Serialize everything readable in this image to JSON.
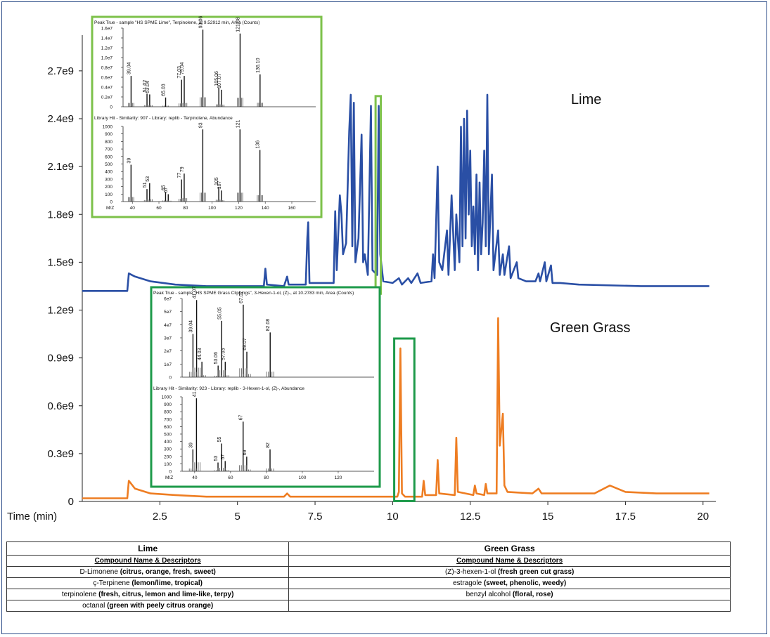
{
  "chart_data": {
    "type": "line",
    "xlabel": "Time (min)",
    "xticks": [
      "2.5",
      "5",
      "7.5",
      "10",
      "12.5",
      "15",
      "17.5",
      "20"
    ],
    "xlim": [
      0,
      20.3
    ],
    "yticks": [
      "0",
      "0.3e9",
      "0.6e9",
      "0.9e9",
      "1.2e9",
      "1.5e9",
      "1.8e9",
      "2.1e9",
      "2.4e9",
      "2.7e9"
    ],
    "ylim": [
      0,
      2880000000.0
    ],
    "series": [
      {
        "name": "Lime",
        "color": "#2a4fa5",
        "baseline": 1320000000.0,
        "points": [
          [
            0,
            1320000000.0
          ],
          [
            1.45,
            1320000000.0
          ],
          [
            1.5,
            1430000000.0
          ],
          [
            1.7,
            1410000000.0
          ],
          [
            2.2,
            1380000000.0
          ],
          [
            3,
            1360000000.0
          ],
          [
            4,
            1350000000.0
          ],
          [
            5.5,
            1350000000.0
          ],
          [
            5.85,
            1350000000.0
          ],
          [
            5.9,
            1460000000.0
          ],
          [
            5.95,
            1360000000.0
          ],
          [
            6.5,
            1350000000.0
          ],
          [
            6.6,
            1410000000.0
          ],
          [
            6.65,
            1360000000.0
          ],
          [
            7.2,
            1360000000.0
          ],
          [
            7.25,
            1650000000.0
          ],
          [
            7.28,
            1750000000.0
          ],
          [
            7.32,
            1370000000.0
          ],
          [
            8.1,
            1370000000.0
          ],
          [
            8.15,
            1820000000.0
          ],
          [
            8.2,
            1450000000.0
          ],
          [
            8.3,
            1920000000.0
          ],
          [
            8.35,
            1800000000.0
          ],
          [
            8.4,
            1550000000.0
          ],
          [
            8.5,
            1620000000.0
          ],
          [
            8.6,
            2320000000.0
          ],
          [
            8.65,
            2550000000.0
          ],
          [
            8.7,
            1600000000.0
          ],
          [
            8.75,
            2500000000.0
          ],
          [
            8.8,
            1500000000.0
          ],
          [
            8.9,
            1650000000.0
          ],
          [
            9.0,
            2300000000.0
          ],
          [
            9.05,
            1500000000.0
          ],
          [
            9.1,
            1550000000.0
          ],
          [
            9.2,
            1420000000.0
          ],
          [
            9.3,
            2480000000.0
          ],
          [
            9.35,
            1450000000.0
          ],
          [
            9.5,
            1420000000.0
          ],
          [
            9.55,
            2480000000.0
          ],
          [
            9.6,
            1550000000.0
          ],
          [
            9.7,
            1380000000.0
          ],
          [
            10.0,
            1370000000.0
          ],
          [
            10.2,
            1400000000.0
          ],
          [
            10.3,
            1360000000.0
          ],
          [
            10.5,
            1400000000.0
          ],
          [
            10.6,
            1370000000.0
          ],
          [
            10.8,
            1430000000.0
          ],
          [
            10.9,
            1370000000.0
          ],
          [
            11.25,
            1380000000.0
          ],
          [
            11.3,
            1550000000.0
          ],
          [
            11.35,
            1400000000.0
          ],
          [
            11.45,
            2100000000.0
          ],
          [
            11.5,
            1500000000.0
          ],
          [
            11.6,
            1450000000.0
          ],
          [
            11.75,
            1700000000.0
          ],
          [
            11.8,
            1420000000.0
          ],
          [
            11.9,
            1920000000.0
          ],
          [
            12.0,
            1450000000.0
          ],
          [
            12.05,
            1800000000.0
          ],
          [
            12.15,
            1500000000.0
          ],
          [
            12.2,
            2350000000.0
          ],
          [
            12.25,
            1600000000.0
          ],
          [
            12.3,
            2400000000.0
          ],
          [
            12.35,
            1650000000.0
          ],
          [
            12.4,
            2450000000.0
          ],
          [
            12.45,
            1800000000.0
          ],
          [
            12.5,
            2200000000.0
          ],
          [
            12.55,
            1600000000.0
          ],
          [
            12.6,
            1850000000.0
          ],
          [
            12.65,
            1550000000.0
          ],
          [
            12.7,
            2050000000.0
          ],
          [
            12.75,
            1450000000.0
          ],
          [
            12.8,
            2000000000.0
          ],
          [
            12.85,
            1550000000.0
          ],
          [
            12.9,
            1750000000.0
          ],
          [
            12.95,
            2200000000.0
          ],
          [
            13.0,
            1600000000.0
          ],
          [
            13.05,
            2550000000.0
          ],
          [
            13.1,
            1550000000.0
          ],
          [
            13.2,
            2050000000.0
          ],
          [
            13.25,
            1450000000.0
          ],
          [
            13.4,
            1700000000.0
          ],
          [
            13.45,
            1420000000.0
          ],
          [
            13.55,
            1550000000.0
          ],
          [
            13.6,
            1420000000.0
          ],
          [
            13.75,
            1600000000.0
          ],
          [
            13.8,
            1400000000.0
          ],
          [
            14.0,
            1500000000.0
          ],
          [
            14.05,
            1400000000.0
          ],
          [
            14.3,
            1380000000.0
          ],
          [
            14.6,
            1380000000.0
          ],
          [
            14.7,
            1430000000.0
          ],
          [
            14.75,
            1380000000.0
          ],
          [
            14.9,
            1500000000.0
          ],
          [
            14.95,
            1380000000.0
          ],
          [
            15.1,
            1480000000.0
          ],
          [
            15.15,
            1370000000.0
          ],
          [
            15.4,
            1370000000.0
          ],
          [
            16,
            1360000000.0
          ],
          [
            18,
            1350000000.0
          ],
          [
            20.2,
            1350000000.0
          ]
        ]
      },
      {
        "name": "Green Grass",
        "color": "#ee7d22",
        "baseline": 20000000.0,
        "points": [
          [
            0,
            20000000.0
          ],
          [
            1.45,
            20000000.0
          ],
          [
            1.5,
            130000000.0
          ],
          [
            1.7,
            80000000.0
          ],
          [
            2.2,
            50000000.0
          ],
          [
            3,
            40000000.0
          ],
          [
            4,
            30000000.0
          ],
          [
            6.5,
            30000000.0
          ],
          [
            6.6,
            50000000.0
          ],
          [
            6.7,
            30000000.0
          ],
          [
            8,
            30000000.0
          ],
          [
            10,
            30000000.0
          ],
          [
            10.15,
            30000000.0
          ],
          [
            10.2,
            60000000.0
          ],
          [
            10.25,
            960000000.0
          ],
          [
            10.3,
            50000000.0
          ],
          [
            10.4,
            30000000.0
          ],
          [
            10.95,
            30000000.0
          ],
          [
            11.0,
            130000000.0
          ],
          [
            11.05,
            40000000.0
          ],
          [
            11.4,
            40000000.0
          ],
          [
            11.45,
            260000000.0
          ],
          [
            11.5,
            50000000.0
          ],
          [
            12.0,
            40000000.0
          ],
          [
            12.05,
            400000000.0
          ],
          [
            12.1,
            60000000.0
          ],
          [
            12.6,
            40000000.0
          ],
          [
            12.65,
            100000000.0
          ],
          [
            12.7,
            50000000.0
          ],
          [
            12.95,
            40000000.0
          ],
          [
            13.0,
            110000000.0
          ],
          [
            13.05,
            50000000.0
          ],
          [
            13.35,
            50000000.0
          ],
          [
            13.4,
            1150000000.0
          ],
          [
            13.45,
            350000000.0
          ],
          [
            13.55,
            550000000.0
          ],
          [
            13.6,
            100000000.0
          ],
          [
            13.7,
            60000000.0
          ],
          [
            14.5,
            50000000.0
          ],
          [
            14.7,
            80000000.0
          ],
          [
            14.8,
            50000000.0
          ],
          [
            16.5,
            50000000.0
          ],
          [
            17.0,
            100000000.0
          ],
          [
            17.5,
            60000000.0
          ],
          [
            18.5,
            50000000.0
          ],
          [
            20.2,
            50000000.0
          ]
        ]
      }
    ],
    "highlights": [
      {
        "series": "Lime",
        "x_range": [
          9.45,
          9.62
        ],
        "color": "#7dc14a"
      },
      {
        "series": "Green Grass",
        "x_range": [
          10.05,
          10.7
        ],
        "color": "#1d9a4a"
      }
    ]
  },
  "labels": {
    "lime": "Lime",
    "green_grass": "Green Grass"
  },
  "insets": [
    {
      "border_color": "#7dc14a",
      "top_title": "Peak True - sample \"HS SPME Lime\", Terpinolene, at 9.52912 min, Area (Counts)",
      "top_yticks": [
        "1.6e7",
        "1.4e7",
        "1.2e7",
        "1.0e7",
        "0.8e7",
        "0.6e7",
        "0.4e7",
        "0.2e7",
        "0"
      ],
      "top_peaks": [
        {
          "mz": 39.04,
          "rel": 0.4
        },
        {
          "mz": 51.02,
          "rel": 0.17
        },
        {
          "mz": 53.04,
          "rel": 0.16
        },
        {
          "mz": 65.03,
          "rel": 0.12
        },
        {
          "mz": 77.03,
          "rel": 0.35
        },
        {
          "mz": 79.04,
          "rel": 0.4
        },
        {
          "mz": 93.06,
          "rel": 1.0
        },
        {
          "mz": 105.06,
          "rel": 0.25
        },
        {
          "mz": 107.07,
          "rel": 0.22
        },
        {
          "mz": 121.08,
          "rel": 0.95
        },
        {
          "mz": 136.1,
          "rel": 0.42
        }
      ],
      "top_peak_labels": [
        "39.04",
        "51.02",
        "53.04",
        "65.03",
        "77.03",
        "79.04",
        "93.06",
        "105.06",
        "107.07",
        "121.08",
        "136.10"
      ],
      "bottom_title": "Library Hit - Similarity: 907 - Library: replib - Terpinolene, Abundance",
      "bottom_yticks": [
        "1000",
        "900",
        "800",
        "700",
        "600",
        "500",
        "400",
        "300",
        "200",
        "100",
        "0"
      ],
      "bottom_peaks": [
        {
          "mz": 39,
          "rel": 0.5
        },
        {
          "mz": 51,
          "rel": 0.17
        },
        {
          "mz": 53,
          "rel": 0.25
        },
        {
          "mz": 65,
          "rel": 0.13
        },
        {
          "mz": 67,
          "rel": 0.1
        },
        {
          "mz": 77,
          "rel": 0.3
        },
        {
          "mz": 79,
          "rel": 0.38
        },
        {
          "mz": 93,
          "rel": 0.98
        },
        {
          "mz": 105,
          "rel": 0.2
        },
        {
          "mz": 107,
          "rel": 0.15
        },
        {
          "mz": 121,
          "rel": 0.98
        },
        {
          "mz": 136,
          "rel": 0.7
        }
      ],
      "bottom_peak_labels": [
        "39",
        "51",
        "53",
        "65",
        "67",
        "77",
        "79",
        "93",
        "105",
        "107",
        "121",
        "136"
      ],
      "x_axis_label": "M/Z",
      "xticks": [
        "40",
        "60",
        "80",
        "100",
        "120",
        "140",
        "160"
      ],
      "xlim": [
        33,
        178
      ]
    },
    {
      "border_color": "#1d9a4a",
      "top_title": "Peak True - sample \"HS SPME Grass Clippings\", 3-Hexen-1-ol, (Z)-, at 10.2783 min, Area (Counts)",
      "top_yticks": [
        "6e7",
        "5e7",
        "4e7",
        "3e7",
        "2e7",
        "1e7",
        "0"
      ],
      "top_peaks": [
        {
          "mz": 39.04,
          "rel": 0.56
        },
        {
          "mz": 41.07,
          "rel": 1.0
        },
        {
          "mz": 44.03,
          "rel": 0.2
        },
        {
          "mz": 53.06,
          "rel": 0.15
        },
        {
          "mz": 55.05,
          "rel": 0.73
        },
        {
          "mz": 57.03,
          "rel": 0.2
        },
        {
          "mz": 67.07,
          "rel": 0.94
        },
        {
          "mz": 69.07,
          "rel": 0.33
        },
        {
          "mz": 82.08,
          "rel": 0.58
        }
      ],
      "top_peak_labels": [
        "39.04",
        "41.07",
        "44.03",
        "53.06",
        "55.05",
        "57.03",
        "67.07",
        "69.07",
        "82.08"
      ],
      "bottom_title": "Library Hit - Similarity: 923 - Library: replib - 3-Hexen-1-ol, (Z)-, Abundance",
      "bottom_yticks": [
        "1000",
        "900",
        "800",
        "700",
        "600",
        "500",
        "400",
        "300",
        "200",
        "100",
        "0"
      ],
      "bottom_peaks": [
        {
          "mz": 39,
          "rel": 0.3
        },
        {
          "mz": 41,
          "rel": 1.0
        },
        {
          "mz": 53,
          "rel": 0.12
        },
        {
          "mz": 55,
          "rel": 0.38
        },
        {
          "mz": 57,
          "rel": 0.14
        },
        {
          "mz": 67,
          "rel": 0.68
        },
        {
          "mz": 69,
          "rel": 0.2
        },
        {
          "mz": 82,
          "rel": 0.3
        }
      ],
      "bottom_peak_labels": [
        "39",
        "41",
        "53",
        "55",
        "57",
        "67",
        "69",
        "82"
      ],
      "x_axis_label": "M/Z",
      "xticks": [
        "40",
        "60",
        "80",
        "100",
        "120"
      ],
      "xlim": [
        33,
        140
      ]
    }
  ],
  "table": {
    "lime_header": "Lime",
    "grass_header": "Green Grass",
    "lime_sub": "Compound Name & Descriptors",
    "grass_sub": "Compound Name & Descriptors",
    "rows": [
      {
        "lime_name": "D-Limonene",
        "lime_desc": "(citrus, orange, fresh, sweet)",
        "grass_name": "(Z)-3-hexen-1-ol",
        "grass_desc": "(fresh green cut grass)"
      },
      {
        "lime_name": "ç-Terpinene",
        "lime_desc": "(lemon/lime, tropical)",
        "grass_name": "estragole",
        "grass_desc": "(sweet, phenolic, weedy)"
      },
      {
        "lime_name": "terpinolene",
        "lime_desc": "(fresh, citrus, lemon and lime-like, terpy)",
        "grass_name": "benzyl alcohol",
        "grass_desc": "(floral, rose)"
      },
      {
        "lime_name": "octanal",
        "lime_desc": "(green with peely citrus orange)",
        "grass_name": "",
        "grass_desc": ""
      }
    ]
  }
}
